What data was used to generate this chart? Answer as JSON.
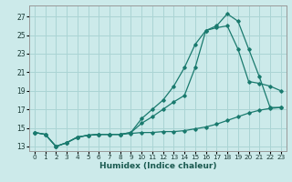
{
  "xlabel": "Humidex (Indice chaleur)",
  "background_color": "#cceaea",
  "grid_color": "#aad4d4",
  "line_color": "#1a7a6e",
  "x_ticks": [
    0,
    1,
    2,
    3,
    4,
    5,
    6,
    7,
    8,
    9,
    10,
    11,
    12,
    13,
    14,
    15,
    16,
    17,
    18,
    19,
    20,
    21,
    22,
    23
  ],
  "y_ticks": [
    13,
    15,
    17,
    19,
    21,
    23,
    25,
    27
  ],
  "xlim": [
    -0.5,
    23.5
  ],
  "ylim": [
    12.5,
    28.2
  ],
  "series": [
    {
      "x": [
        0,
        1,
        2,
        3,
        4,
        5,
        6,
        7,
        8,
        9,
        10,
        11,
        12,
        13,
        14,
        15,
        16,
        17,
        18,
        19,
        20,
        21,
        22,
        23
      ],
      "y": [
        14.5,
        14.3,
        13.0,
        13.4,
        14.0,
        14.2,
        14.3,
        14.3,
        14.3,
        14.4,
        14.5,
        14.5,
        14.6,
        14.6,
        14.7,
        14.9,
        15.1,
        15.4,
        15.8,
        16.2,
        16.6,
        16.9,
        17.1,
        17.2
      ]
    },
    {
      "x": [
        0,
        1,
        2,
        3,
        4,
        5,
        6,
        7,
        8,
        9,
        10,
        11,
        12,
        13,
        14,
        15,
        16,
        17,
        18,
        19,
        20,
        21,
        22,
        23
      ],
      "y": [
        14.5,
        14.3,
        13.0,
        13.4,
        14.0,
        14.2,
        14.3,
        14.3,
        14.3,
        14.5,
        16.0,
        17.0,
        18.0,
        19.5,
        21.5,
        24.0,
        25.5,
        26.0,
        27.3,
        26.5,
        23.5,
        20.5,
        17.2,
        17.2
      ]
    },
    {
      "x": [
        0,
        1,
        2,
        3,
        4,
        5,
        6,
        7,
        8,
        9,
        10,
        11,
        12,
        13,
        14,
        15,
        16,
        17,
        18,
        19,
        20,
        21,
        22,
        23
      ],
      "y": [
        14.5,
        14.3,
        13.0,
        13.4,
        14.0,
        14.2,
        14.3,
        14.3,
        14.3,
        14.5,
        15.5,
        16.2,
        17.0,
        17.8,
        18.5,
        21.5,
        25.5,
        25.8,
        26.0,
        23.5,
        20.0,
        19.8,
        19.5,
        19.0
      ]
    }
  ]
}
